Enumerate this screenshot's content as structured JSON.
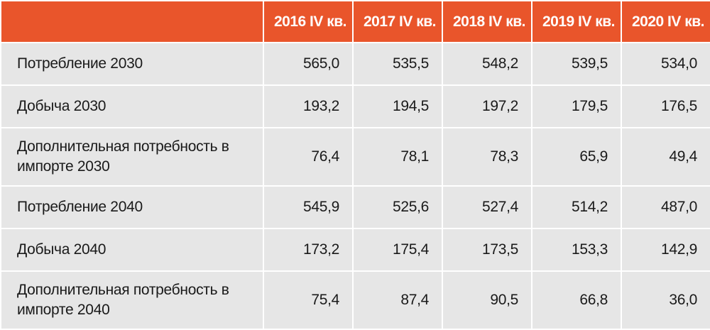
{
  "chart_data": {
    "type": "table",
    "columns": [
      "2016 IV кв.",
      "2017 IV кв.",
      "2018 IV кв.",
      "2019 IV кв.",
      "2020 IV кв."
    ],
    "rows": [
      {
        "label": "Потребление 2030",
        "values": [
          "565,0",
          "535,5",
          "548,2",
          "539,5",
          "534,0"
        ]
      },
      {
        "label": "Добыча 2030",
        "values": [
          "193,2",
          "194,5",
          "197,2",
          "179,5",
          "176,5"
        ]
      },
      {
        "label": "Дополнительная потребность в импорте 2030",
        "values": [
          "76,4",
          "78,1",
          "78,3",
          "65,9",
          "49,4"
        ]
      },
      {
        "label": "Потребление 2040",
        "values": [
          "545,9",
          "525,6",
          "527,4",
          "514,2",
          "487,0"
        ]
      },
      {
        "label": "Добыча 2040",
        "values": [
          "173,2",
          "175,4",
          "173,5",
          "153,3",
          "142,9"
        ]
      },
      {
        "label": "Дополнительная потребность в импорте 2040",
        "values": [
          "75,4",
          "87,4",
          "90,5",
          "66,8",
          "36,0"
        ]
      }
    ]
  },
  "colors": {
    "header_bg": "#e9552b",
    "header_text": "#ffffff",
    "cell_bg": "#e6e6e6",
    "cell_text": "#1a1a1a"
  }
}
